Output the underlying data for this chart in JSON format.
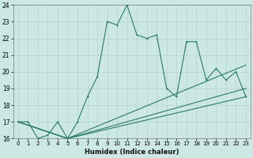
{
  "xlabel": "Humidex (Indice chaleur)",
  "background_color": "#cce8e4",
  "grid_color": "#b0cccc",
  "line_color": "#2a7a6a",
  "xlim": [
    0,
    23
  ],
  "ylim": [
    16,
    24
  ],
  "xticks": [
    0,
    1,
    2,
    3,
    4,
    5,
    6,
    7,
    8,
    9,
    10,
    11,
    12,
    13,
    14,
    15,
    16,
    17,
    18,
    19,
    20,
    21,
    22,
    23
  ],
  "yticks": [
    16,
    17,
    18,
    19,
    20,
    21,
    22,
    23,
    24
  ],
  "line1_x": [
    0,
    1,
    2,
    3,
    4,
    5,
    6,
    7,
    8,
    9,
    10,
    11,
    12,
    13,
    14,
    15,
    16,
    17,
    18,
    19,
    20,
    21,
    22,
    23
  ],
  "line1_y": [
    17.0,
    17.0,
    16.0,
    16.2,
    17.0,
    16.0,
    17.0,
    18.5,
    19.7,
    23.0,
    22.8,
    24.0,
    22.2,
    22.0,
    22.2,
    19.0,
    18.5,
    21.8,
    21.8,
    19.5,
    20.2,
    19.5,
    20.0,
    18.5
  ],
  "line2_x": [
    0,
    5,
    23
  ],
  "line2_y": [
    17.0,
    16.0,
    20.4
  ],
  "line3_x": [
    0,
    5,
    23
  ],
  "line3_y": [
    17.0,
    16.0,
    19.0
  ],
  "line4_x": [
    0,
    5,
    23
  ],
  "line4_y": [
    17.0,
    16.0,
    18.5
  ]
}
